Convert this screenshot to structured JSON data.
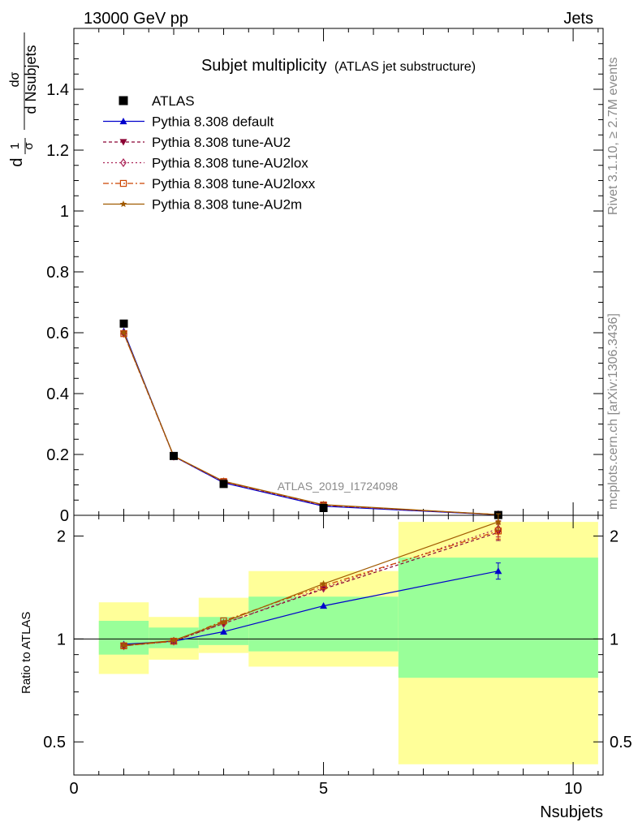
{
  "header": {
    "left": "13000 GeV pp",
    "right": "Jets"
  },
  "side": {
    "rivet": "Rivet 3.1.10, ≥ 2.7M events",
    "mcplots": "mcplots.cern.ch [arXiv:1306.3436]"
  },
  "chart_data": {
    "type": "line",
    "title": "Subjet multiplicity",
    "subtitle": "(ATLAS jet substructure)",
    "analysis_label": "ATLAS_2019_I1724098",
    "xlabel": "Nsubjets",
    "ylabel_top": {
      "d_top": "d",
      "one": "1",
      "sigma": "σ",
      "d_sigma": "dσ",
      "d_nsub": "d Nsubjets"
    },
    "ylabel_ratio": "Ratio to ATLAS",
    "x": [
      1,
      2,
      3,
      5,
      8.5
    ],
    "xlim": [
      0,
      10.6
    ],
    "ylim_top": [
      0,
      1.6
    ],
    "ylim_ratio": [
      0.4,
      2.3
    ],
    "log_ratio": true,
    "x_ticks": [
      0,
      5,
      10
    ],
    "x_tick_labels": [
      "0",
      "5",
      "10"
    ],
    "y_ticks_top": [
      0,
      0.2,
      0.4,
      0.6,
      0.8,
      1,
      1.2,
      1.4
    ],
    "y_tick_labels_top": [
      "0",
      "0.2",
      "0.4",
      "0.6",
      "0.8",
      "1",
      "1.2",
      "1.4"
    ],
    "y_ticks_ratio": [
      0.5,
      1,
      2
    ],
    "y_tick_labels_ratio": [
      "0.5",
      "1",
      "2"
    ],
    "data_series": {
      "name": "ATLAS",
      "values": [
        0.63,
        0.195,
        0.103,
        0.024,
        0.001
      ],
      "color": "#000000"
    },
    "series": [
      {
        "name": "Pythia 8.308 default",
        "color": "#0000cc",
        "dash": "",
        "marker": "triangle-up",
        "values": [
          0.605,
          0.194,
          0.107,
          0.03,
          0.0016
        ],
        "ratio": [
          0.965,
          0.985,
          1.05,
          1.25,
          1.58
        ]
      },
      {
        "name": "Pythia 8.308 tune-AU2",
        "color": "#8b0033",
        "dash": "4,3",
        "marker": "triangle-down",
        "values": [
          0.598,
          0.194,
          0.11,
          0.033,
          0.0021
        ],
        "ratio": [
          0.955,
          0.985,
          1.11,
          1.4,
          2.05
        ]
      },
      {
        "name": "Pythia 8.308 tune-AU2lox",
        "color": "#aa2255",
        "dash": "2,3",
        "marker": "diamond-open",
        "values": [
          0.598,
          0.194,
          0.11,
          0.033,
          0.0022
        ],
        "ratio": [
          0.955,
          0.985,
          1.11,
          1.41,
          2.1
        ]
      },
      {
        "name": "Pythia 8.308 tune-AU2loxx",
        "color": "#cc4400",
        "dash": "7,3,2,3",
        "marker": "square-open",
        "values": [
          0.597,
          0.194,
          0.111,
          0.034,
          0.0021
        ],
        "ratio": [
          0.955,
          0.985,
          1.13,
          1.43,
          2.07
        ]
      },
      {
        "name": "Pythia 8.308 tune-AU2m",
        "color": "#a05a00",
        "dash": "",
        "marker": "star",
        "values": [
          0.6,
          0.195,
          0.112,
          0.035,
          0.0023
        ],
        "ratio": [
          0.958,
          0.99,
          1.12,
          1.45,
          2.2
        ]
      }
    ],
    "bands": {
      "yellow_color": "#ffff99",
      "green_color": "#99ff99",
      "bins": [
        {
          "x0": 0.5,
          "x1": 1.5,
          "yellow": [
            0.79,
            1.28
          ],
          "green": [
            0.9,
            1.13
          ]
        },
        {
          "x0": 1.5,
          "x1": 2.5,
          "yellow": [
            0.87,
            1.16
          ],
          "green": [
            0.94,
            1.08
          ]
        },
        {
          "x0": 2.5,
          "x1": 3.5,
          "yellow": [
            0.91,
            1.32
          ],
          "green": [
            0.96,
            1.16
          ]
        },
        {
          "x0": 3.5,
          "x1": 6.5,
          "yellow": [
            0.83,
            1.58
          ],
          "green": [
            0.92,
            1.33
          ]
        },
        {
          "x0": 6.5,
          "x1": 10.5,
          "yellow": [
            0.43,
            2.2
          ],
          "green": [
            0.77,
            1.73
          ]
        }
      ]
    }
  }
}
